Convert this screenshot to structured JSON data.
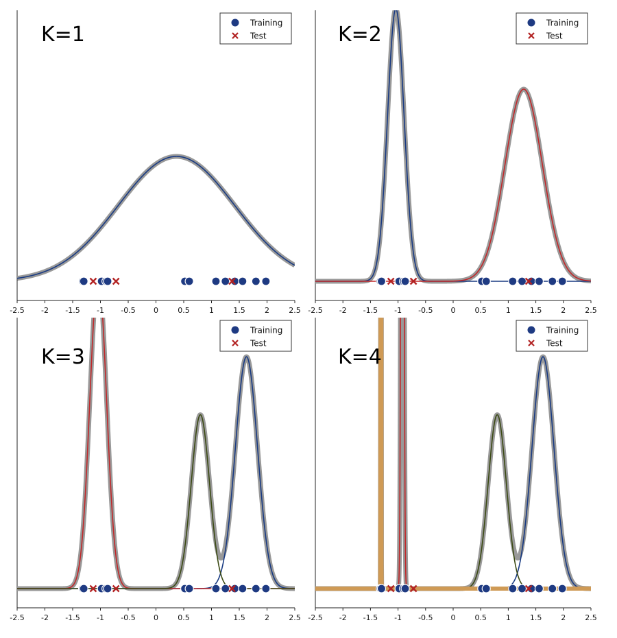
{
  "legend": {
    "training": "Training",
    "test": "Test"
  },
  "colors": {
    "mixture": "#999999",
    "series_1": "#183a82",
    "series_2": "#c0282a",
    "series_3": "#3b4a14",
    "series_4": "#cf9a55",
    "training_marker": "#1e3a82",
    "test_marker": "#b22222"
  },
  "chart_data": [
    {
      "type": "line",
      "title": "K=1",
      "xlim": [
        -2.5,
        2.5
      ],
      "xticks": [
        "-2.5",
        "-2",
        "-1.5",
        "-1",
        "-0.5",
        "0",
        "0.5",
        "1",
        "1.5",
        "2",
        "2.5"
      ],
      "legend_position": "top-right",
      "training_points": [
        -1.32,
        -1.3,
        -0.98,
        -0.9,
        -0.87,
        0.52,
        0.6,
        1.08,
        1.25,
        1.42,
        1.56,
        1.8,
        1.98
      ],
      "test_points": [
        -1.13,
        -0.72,
        1.37
      ],
      "components": [
        {
          "weight": 1.0,
          "mean": 0.37,
          "sd": 1.05
        }
      ]
    },
    {
      "type": "line",
      "title": "K=2",
      "xlim": [
        -2.5,
        2.5
      ],
      "xticks": [
        "-2.5",
        "-2",
        "-1.5",
        "-1",
        "-0.5",
        "0",
        "0.5",
        "1",
        "1.5",
        "2",
        "2.5"
      ],
      "legend_position": "top-right",
      "training_points": [
        -1.32,
        -1.3,
        -0.98,
        -0.9,
        -0.87,
        0.52,
        0.6,
        1.08,
        1.25,
        1.42,
        1.56,
        1.8,
        1.98
      ],
      "test_points": [
        -1.13,
        -0.72,
        1.37
      ],
      "components": [
        {
          "weight": 0.385,
          "mean": -1.04,
          "sd": 0.15
        },
        {
          "weight": 0.615,
          "mean": 1.28,
          "sd": 0.34
        }
      ]
    },
    {
      "type": "line",
      "title": "K=3",
      "xlim": [
        -2.5,
        2.5
      ],
      "xticks": [
        "-2.5",
        "-2",
        "-1.5",
        "-1",
        "-0.5",
        "0",
        "0.5",
        "1",
        "1.5",
        "2",
        "2.5"
      ],
      "legend_position": "top-right",
      "training_points": [
        -1.32,
        -1.3,
        -0.98,
        -0.9,
        -0.87,
        0.52,
        0.6,
        1.08,
        1.25,
        1.42,
        1.56,
        1.8,
        1.98
      ],
      "test_points": [
        -1.13,
        -0.72,
        1.37
      ],
      "components": [
        {
          "weight": 0.38,
          "mean": 1.63,
          "sd": 0.2
        },
        {
          "weight": 0.385,
          "mean": -1.04,
          "sd": 0.15
        },
        {
          "weight": 0.235,
          "mean": 0.8,
          "sd": 0.165
        }
      ]
    },
    {
      "type": "line",
      "title": "K=4",
      "xlim": [
        -2.5,
        2.5
      ],
      "xticks": [
        "-2.5",
        "-2",
        "-1.5",
        "-1",
        "-0.5",
        "0",
        "0.5",
        "1",
        "1.5",
        "2",
        "2.5"
      ],
      "legend_position": "top-right",
      "training_points": [
        -1.32,
        -1.3,
        -0.98,
        -0.9,
        -0.87,
        0.52,
        0.6,
        1.08,
        1.25,
        1.42,
        1.56,
        1.8,
        1.98
      ],
      "test_points": [
        -1.13,
        -0.72,
        1.37
      ],
      "components": [
        {
          "weight": 0.38,
          "mean": 1.63,
          "sd": 0.2
        },
        {
          "weight": 0.23,
          "mean": -0.92,
          "sd": 0.02
        },
        {
          "weight": 0.235,
          "mean": 0.8,
          "sd": 0.165
        },
        {
          "weight": 0.155,
          "mean": -1.31,
          "sd": 0.003
        }
      ]
    }
  ]
}
